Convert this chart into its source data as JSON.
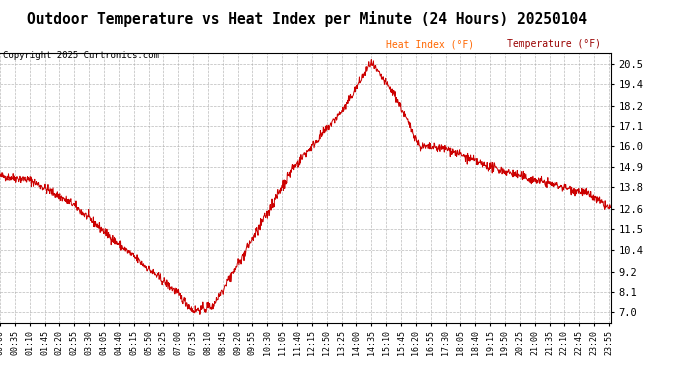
{
  "title": "Outdoor Temperature vs Heat Index per Minute (24 Hours) 20250104",
  "copyright": "Copyright 2025 Curtronics.com",
  "legend_heat": "Heat Index (°F)",
  "legend_temp": "Temperature (°F)",
  "yticks": [
    7.0,
    8.1,
    9.2,
    10.4,
    11.5,
    12.6,
    13.8,
    14.9,
    16.0,
    17.1,
    18.2,
    19.4,
    20.5
  ],
  "ylim": [
    6.45,
    21.1
  ],
  "line_color": "#cc0000",
  "grid_color": "#aaaaaa",
  "background_color": "#ffffff",
  "title_fontsize": 10.5,
  "copyright_fontsize": 6.5,
  "legend_fontsize": 7.0,
  "ytick_fontsize": 7.5,
  "xtick_fontsize": 6.0,
  "legend_heat_color": "#ff6600",
  "legend_temp_color": "#990000",
  "x_tick_interval": 35,
  "total_minutes": 1440
}
